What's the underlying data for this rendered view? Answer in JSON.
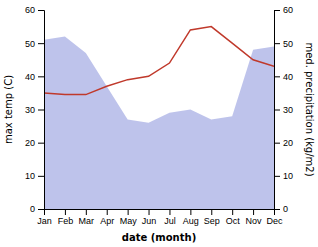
{
  "chart_data": {
    "type": "line",
    "xlabel": "date (month)",
    "ylabel": "max temp (C)",
    "y2label": "med. precipitation (kg/m2)",
    "categories": [
      "Jan",
      "Feb",
      "Mar",
      "Apr",
      "May",
      "Jun",
      "Jul",
      "Aug",
      "Sep",
      "Oct",
      "Nov",
      "Dec"
    ],
    "series": [
      {
        "type": "area",
        "axis": "y2",
        "color": "#b3b9e8",
        "values": [
          51,
          52,
          47,
          37,
          27,
          26,
          29,
          30,
          27,
          28,
          48,
          49
        ]
      },
      {
        "type": "line",
        "color": "#c0392b",
        "values": [
          35,
          34.5,
          34.5,
          37,
          39,
          40,
          44,
          54,
          55,
          50,
          45,
          43
        ]
      }
    ],
    "ylim": [
      0,
      60
    ],
    "yticks": [
      0,
      10,
      20,
      30,
      40,
      50,
      60
    ],
    "y2lim": [
      0,
      60
    ],
    "y2ticks": [
      0,
      10,
      20,
      30,
      40,
      50,
      60
    ],
    "grid": false
  }
}
